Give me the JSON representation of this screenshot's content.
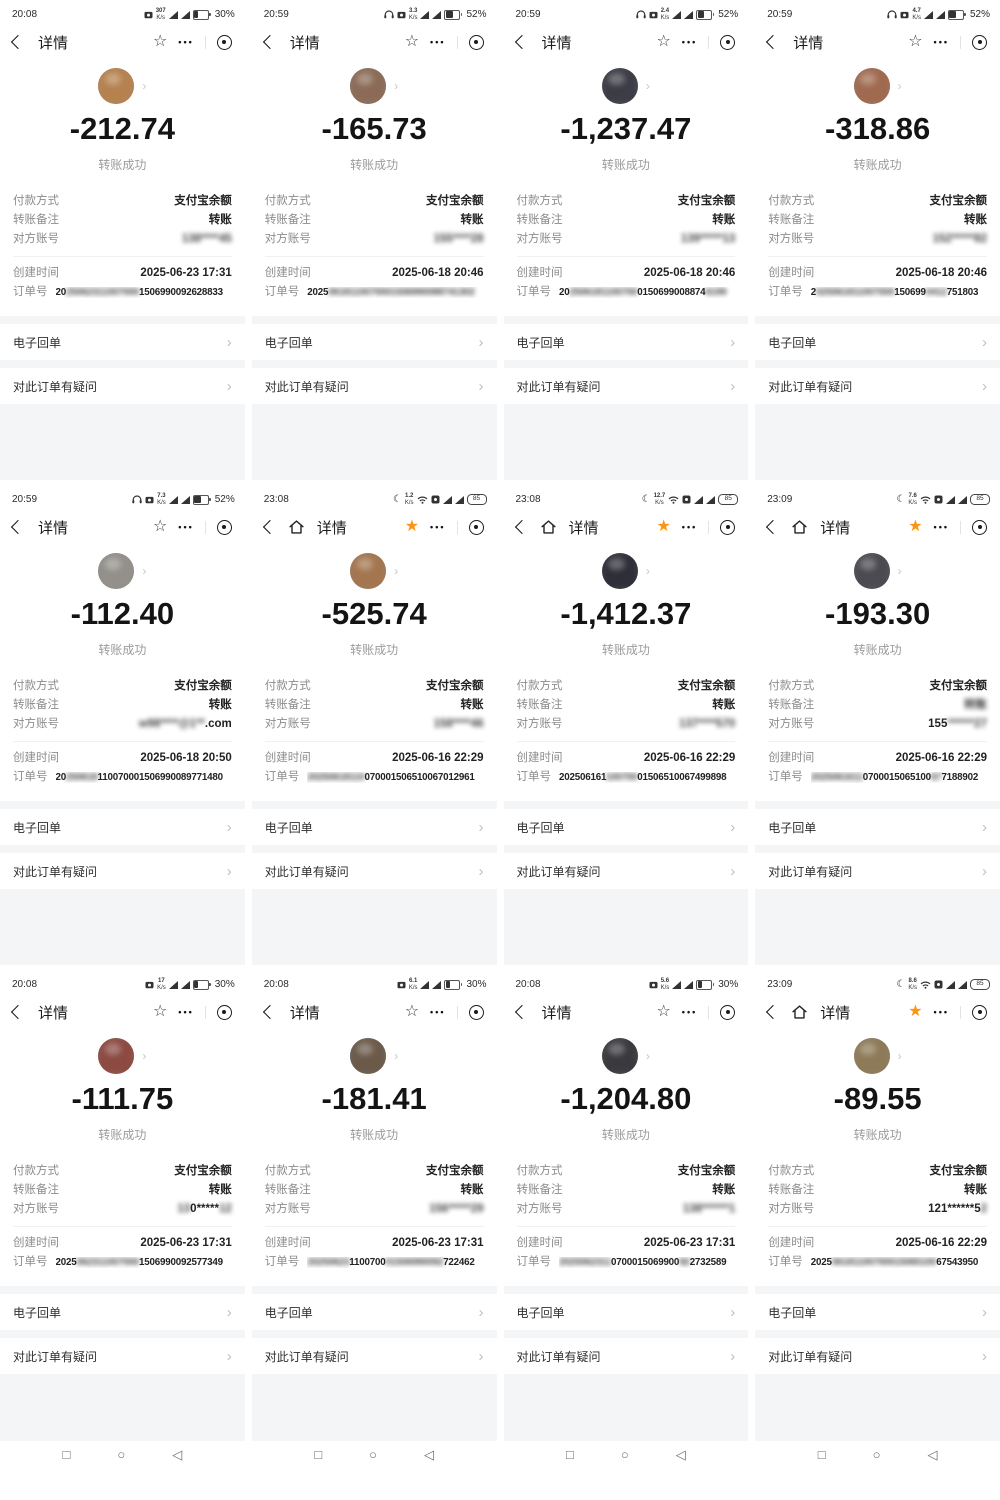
{
  "labels": {
    "nav_title": "详情",
    "status_success": "转账成功",
    "payment_method": "付款方式",
    "payment_method_value": "支付宝余额",
    "remark_label": "转账备注",
    "remark_value": "转账",
    "account_label": "对方账号",
    "create_time_label": "创建时间",
    "order_label": "订单号",
    "receipt": "电子回单",
    "question": "对此订单有疑问",
    "speed_unit": "K/s"
  },
  "android_nav": {
    "recents": "□",
    "home": "○",
    "back": "◁"
  },
  "colors": {
    "accent_orange": "#ff9412",
    "label_gray": "#8c8c8c",
    "section_gray": "#f4f5f6"
  },
  "receipts": [
    {
      "time": "20:08",
      "status_icons": [
        "camera"
      ],
      "net_speed": "307",
      "wifi": false,
      "battery": "30%",
      "battery_style": "percent",
      "home": false,
      "starred": false,
      "amount": "-212.74",
      "create_time": "2025-06-23 17:31",
      "remark_blur": false,
      "avatar_color": "#b5824f",
      "account_parts": [
        {
          "t": "138****45",
          "b": 1
        }
      ],
      "order_parts": [
        {
          "t": "20",
          "b": 0
        },
        {
          "t": "25062311007000",
          "b": 1
        },
        {
          "t": "1506990092628833",
          "b": 0
        }
      ]
    },
    {
      "time": "20:59",
      "status_icons": [
        "headset",
        "camera"
      ],
      "net_speed": "3.3",
      "wifi": false,
      "battery": "52%",
      "battery_style": "percent",
      "home": false,
      "starred": false,
      "amount": "-165.73",
      "create_time": "2025-06-18 20:46",
      "remark_blur": false,
      "avatar_color": "#8b6b57",
      "account_parts": [
        {
          "t": "155****28",
          "b": 1
        }
      ],
      "order_parts": [
        {
          "t": "2025",
          "b": 0
        },
        {
          "t": "0618110070001506990088741302",
          "b": 1
        }
      ]
    },
    {
      "time": "20:59",
      "status_icons": [
        "headset",
        "camera"
      ],
      "net_speed": "2.4",
      "wifi": false,
      "battery": "52%",
      "battery_style": "percent",
      "home": false,
      "starred": false,
      "amount": "-1,237.47",
      "create_time": "2025-06-18 20:46",
      "remark_blur": false,
      "avatar_color": "#3c3c46",
      "account_parts": [
        {
          "t": "139*****13",
          "b": 1
        }
      ],
      "order_parts": [
        {
          "t": "20",
          "b": 0
        },
        {
          "t": "2506181100700",
          "b": 1
        },
        {
          "t": "0150699008874",
          "b": 0
        },
        {
          "t": "6199",
          "b": 1
        }
      ]
    },
    {
      "time": "20:59",
      "status_icons": [
        "headset",
        "camera"
      ],
      "net_speed": "4.7",
      "wifi": false,
      "battery": "52%",
      "battery_style": "percent",
      "home": false,
      "starred": false,
      "amount": "-318.86",
      "create_time": "2025-06-18 20:46",
      "remark_blur": false,
      "avatar_color": "#a06a50",
      "account_parts": [
        {
          "t": "152*****82",
          "b": 1
        }
      ],
      "order_parts": [
        {
          "t": "2",
          "b": 0
        },
        {
          "t": "025061811007000",
          "b": 1
        },
        {
          "t": "150699",
          "b": 0
        },
        {
          "t": "0412",
          "b": 1
        },
        {
          "t": "751803",
          "b": 0
        }
      ]
    },
    {
      "time": "20:59",
      "status_icons": [
        "headset",
        "camera"
      ],
      "net_speed": "7.3",
      "wifi": false,
      "battery": "52%",
      "battery_style": "percent",
      "home": false,
      "starred": false,
      "amount": "-112.40",
      "create_time": "2025-06-18 20:50",
      "remark_blur": false,
      "avatar_color": "#93908a",
      "account_parts": [
        {
          "t": "w98****@1**",
          "b": 1
        },
        {
          "t": ".com",
          "b": 0
        }
      ],
      "order_parts": [
        {
          "t": "20",
          "b": 0
        },
        {
          "t": "250618",
          "b": 1
        },
        {
          "t": "110070001506990089771480",
          "b": 0
        }
      ]
    },
    {
      "time": "23:08",
      "status_icons": [
        "moon"
      ],
      "net_speed": "1.2",
      "wifi": true,
      "battery": "85",
      "battery_style": "pill",
      "home": true,
      "starred": true,
      "amount": "-525.74",
      "create_time": "2025-06-16 22:29",
      "remark_blur": false,
      "avatar_color": "#a3764f",
      "account_parts": [
        {
          "t": "158****46",
          "b": 1
        }
      ],
      "order_parts": [
        {
          "t": "20250618110",
          "b": 1
        },
        {
          "t": "070001506510067012961",
          "b": 0
        }
      ]
    },
    {
      "time": "23:08",
      "status_icons": [
        "moon"
      ],
      "net_speed": "12.7",
      "wifi": true,
      "battery": "85",
      "battery_style": "pill",
      "home": true,
      "starred": true,
      "amount": "-1,412.37",
      "create_time": "2025-06-16 22:29",
      "remark_blur": false,
      "avatar_color": "#2e2e38",
      "account_parts": [
        {
          "t": "137****570",
          "b": 1
        }
      ],
      "order_parts": [
        {
          "t": "202506161",
          "b": 0
        },
        {
          "t": "100700",
          "b": 1
        },
        {
          "t": "01506510067499898",
          "b": 0
        }
      ]
    },
    {
      "time": "23:09",
      "status_icons": [
        "moon"
      ],
      "net_speed": "7.6",
      "wifi": true,
      "battery": "85",
      "battery_style": "pill",
      "home": true,
      "starred": true,
      "amount": "-193.30",
      "create_time": "2025-06-16 22:29",
      "remark_blur": true,
      "avatar_color": "#4a4a50",
      "account_parts": [
        {
          "t": "155",
          "b": 0
        },
        {
          "t": "******27",
          "b": 1
        }
      ],
      "order_parts": [
        {
          "t": "2025061611",
          "b": 1
        },
        {
          "t": "0700015065100",
          "b": 0
        },
        {
          "t": "67",
          "b": 1
        },
        {
          "t": "7188902",
          "b": 0
        }
      ]
    },
    {
      "time": "20:08",
      "status_icons": [
        "camera"
      ],
      "net_speed": "17",
      "wifi": false,
      "battery": "30%",
      "battery_style": "percent",
      "home": false,
      "starred": false,
      "amount": "-111.75",
      "create_time": "2025-06-23 17:31",
      "remark_blur": false,
      "avatar_color": "#8c4a42",
      "account_parts": [
        {
          "t": "13",
          "b": 1
        },
        {
          "t": "0*****",
          "b": 0
        },
        {
          "t": "12",
          "b": 1
        }
      ],
      "order_parts": [
        {
          "t": "2025",
          "b": 0
        },
        {
          "t": "062311007000",
          "b": 1
        },
        {
          "t": "1506990092577349",
          "b": 0
        }
      ]
    },
    {
      "time": "20:08",
      "status_icons": [
        "camera"
      ],
      "net_speed": "6.1",
      "wifi": false,
      "battery": "30%",
      "battery_style": "percent",
      "home": false,
      "starred": false,
      "amount": "-181.41",
      "create_time": "2025-06-23 17:31",
      "remark_blur": false,
      "avatar_color": "#6b5a4a",
      "account_parts": [
        {
          "t": "156*****29",
          "b": 1
        }
      ],
      "order_parts": [
        {
          "t": "20250623",
          "b": 1
        },
        {
          "t": "1100700",
          "b": 0
        },
        {
          "t": "01506990092",
          "b": 1
        },
        {
          "t": "722462",
          "b": 0
        }
      ]
    },
    {
      "time": "20:08",
      "status_icons": [
        "camera"
      ],
      "net_speed": "5.6",
      "wifi": false,
      "battery": "30%",
      "battery_style": "percent",
      "home": false,
      "starred": false,
      "amount": "-1,204.80",
      "create_time": "2025-06-23 17:31",
      "remark_blur": false,
      "avatar_color": "#3a3a3e",
      "account_parts": [
        {
          "t": "138******1",
          "b": 1
        }
      ],
      "order_parts": [
        {
          "t": "2025062311",
          "b": 1
        },
        {
          "t": "0700015069900",
          "b": 0
        },
        {
          "t": "92",
          "b": 1
        },
        {
          "t": "2732589",
          "b": 0
        }
      ]
    },
    {
      "time": "23:09",
      "status_icons": [
        "moon"
      ],
      "net_speed": "8.6",
      "wifi": true,
      "battery": "85",
      "battery_style": "pill",
      "home": true,
      "starred": true,
      "amount": "-89.55",
      "create_time": "2025-06-16 22:29",
      "remark_blur": false,
      "avatar_color": "#8d7a58",
      "account_parts": [
        {
          "t": "121******5",
          "b": 0
        },
        {
          "t": "2",
          "b": 1
        }
      ],
      "order_parts": [
        {
          "t": "2025",
          "b": 0
        },
        {
          "t": "06181100700015065100",
          "b": 1
        },
        {
          "t": "67543950",
          "b": 0
        }
      ]
    }
  ]
}
